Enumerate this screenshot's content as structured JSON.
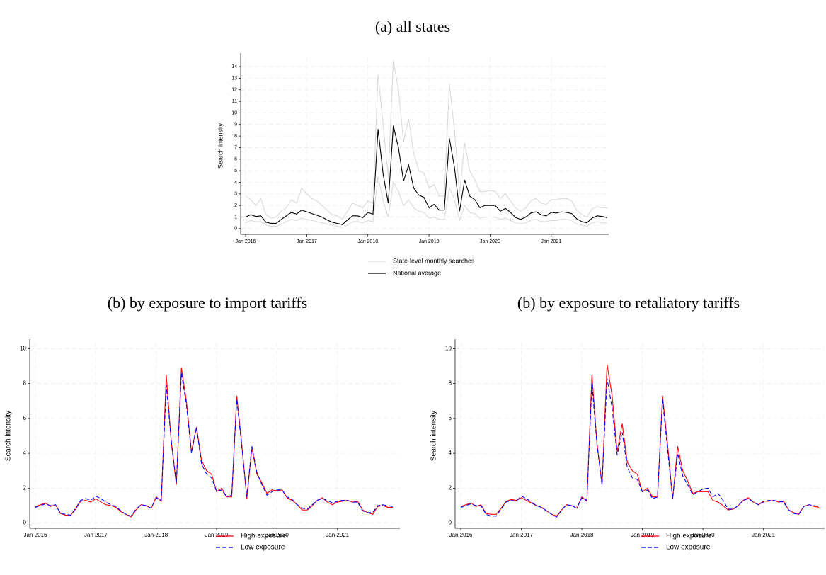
{
  "chart_data": [
    {
      "type": "line",
      "title": "(a) all states",
      "y_label": "Search intensity",
      "grid": true,
      "x": [
        "2016-01",
        "2016-02",
        "2016-03",
        "2016-04",
        "2016-05",
        "2016-06",
        "2016-07",
        "2016-08",
        "2016-09",
        "2016-10",
        "2016-11",
        "2016-12",
        "2017-01",
        "2017-02",
        "2017-03",
        "2017-04",
        "2017-05",
        "2017-06",
        "2017-07",
        "2017-08",
        "2017-09",
        "2017-10",
        "2017-11",
        "2017-12",
        "2018-01",
        "2018-02",
        "2018-03",
        "2018-04",
        "2018-05",
        "2018-06",
        "2018-07",
        "2018-08",
        "2018-09",
        "2018-10",
        "2018-11",
        "2018-12",
        "2019-01",
        "2019-02",
        "2019-03",
        "2019-04",
        "2019-05",
        "2019-06",
        "2019-07",
        "2019-08",
        "2019-09",
        "2019-10",
        "2019-11",
        "2019-12",
        "2020-01",
        "2020-02",
        "2020-03",
        "2020-04",
        "2020-05",
        "2020-06",
        "2020-07",
        "2020-08",
        "2020-09",
        "2020-10",
        "2020-11",
        "2020-12",
        "2021-01",
        "2021-02",
        "2021-03",
        "2021-04",
        "2021-05",
        "2021-06",
        "2021-07",
        "2021-08",
        "2021-09",
        "2021-10",
        "2021-11",
        "2021-12"
      ],
      "xticks": [
        {
          "value": "2016-01",
          "label": "Jan 2016"
        },
        {
          "value": "2017-01",
          "label": "Jan 2017"
        },
        {
          "value": "2018-01",
          "label": "Jan 2018"
        },
        {
          "value": "2019-01",
          "label": "Jan 2019"
        },
        {
          "value": "2020-01",
          "label": "Jan 2020"
        },
        {
          "value": "2021-01",
          "label": "Jan 2021"
        }
      ],
      "ylim": [
        -0.5,
        14.8
      ],
      "yticks": [
        0,
        1,
        2,
        3,
        4,
        5,
        6,
        7,
        8,
        9,
        10,
        11,
        12,
        13,
        14
      ],
      "series": [
        {
          "name": "State-level monthly searches",
          "color": "#d9d9d9",
          "values": [
            2.8,
            2.5,
            2.0,
            2.6,
            1.2,
            0.9,
            1.0,
            1.5,
            1.8,
            2.5,
            2.2,
            3.5,
            3.0,
            2.6,
            2.4,
            2.0,
            1.6,
            1.2,
            1.1,
            0.8,
            1.5,
            2.2,
            2.0,
            1.8,
            2.4,
            2.2,
            13.3,
            9.0,
            4.5,
            14.5,
            12.0,
            7.5,
            9.5,
            6.5,
            5.0,
            4.8,
            3.5,
            3.8,
            2.8,
            2.8,
            12.5,
            8.5,
            3.0,
            7.4,
            5.0,
            4.2,
            3.2,
            3.2,
            3.3,
            3.2,
            2.6,
            3.0,
            2.4,
            1.8,
            1.5,
            1.8,
            2.4,
            2.6,
            2.2,
            2.1,
            2.5,
            2.5,
            2.6,
            2.6,
            2.4,
            1.6,
            1.2,
            1.0,
            1.7,
            1.9,
            1.8,
            1.8
          ]
        },
        {
          "color": "#d9d9d9",
          "values": [
            0.5,
            0.7,
            0.6,
            0.6,
            0.3,
            0.2,
            0.2,
            0.4,
            0.6,
            0.8,
            0.7,
            0.9,
            0.8,
            0.7,
            0.6,
            0.5,
            0.4,
            0.3,
            0.2,
            0.1,
            0.3,
            0.6,
            0.6,
            0.5,
            0.7,
            0.6,
            4.5,
            2.4,
            1.0,
            4.0,
            3.2,
            2.0,
            2.5,
            1.8,
            1.5,
            1.4,
            0.9,
            1.0,
            0.8,
            0.8,
            3.5,
            2.5,
            0.7,
            2.0,
            1.4,
            1.3,
            0.9,
            1.0,
            1.0,
            1.0,
            0.8,
            0.9,
            0.7,
            0.5,
            0.4,
            0.5,
            0.7,
            0.8,
            0.6,
            0.6,
            0.7,
            0.7,
            0.8,
            0.8,
            0.7,
            0.4,
            0.3,
            0.2,
            0.5,
            0.6,
            0.5,
            0.5
          ]
        },
        {
          "name": "National average",
          "color": "#000000",
          "values": [
            1.0,
            1.2,
            1.05,
            1.1,
            0.55,
            0.45,
            0.45,
            0.8,
            1.1,
            1.4,
            1.25,
            1.6,
            1.45,
            1.3,
            1.15,
            1.0,
            0.75,
            0.55,
            0.45,
            0.35,
            0.75,
            1.1,
            1.1,
            0.95,
            1.4,
            1.25,
            8.6,
            4.7,
            2.2,
            8.9,
            7.0,
            4.1,
            5.5,
            3.5,
            2.9,
            2.7,
            1.8,
            2.1,
            1.6,
            1.6,
            7.8,
            5.3,
            1.5,
            4.2,
            2.8,
            2.5,
            1.8,
            2.0,
            2.0,
            2.0,
            1.5,
            1.75,
            1.4,
            0.95,
            0.8,
            1.0,
            1.35,
            1.45,
            1.2,
            1.1,
            1.4,
            1.35,
            1.45,
            1.4,
            1.3,
            0.85,
            0.6,
            0.5,
            0.9,
            1.1,
            1.05,
            0.95
          ]
        }
      ]
    },
    {
      "type": "line",
      "title": "(b) by exposure to import tariffs",
      "y_label": "Search intensity",
      "grid": true,
      "x": [
        "2016-01",
        "2016-02",
        "2016-03",
        "2016-04",
        "2016-05",
        "2016-06",
        "2016-07",
        "2016-08",
        "2016-09",
        "2016-10",
        "2016-11",
        "2016-12",
        "2017-01",
        "2017-02",
        "2017-03",
        "2017-04",
        "2017-05",
        "2017-06",
        "2017-07",
        "2017-08",
        "2017-09",
        "2017-10",
        "2017-11",
        "2017-12",
        "2018-01",
        "2018-02",
        "2018-03",
        "2018-04",
        "2018-05",
        "2018-06",
        "2018-07",
        "2018-08",
        "2018-09",
        "2018-10",
        "2018-11",
        "2018-12",
        "2019-01",
        "2019-02",
        "2019-03",
        "2019-04",
        "2019-05",
        "2019-06",
        "2019-07",
        "2019-08",
        "2019-09",
        "2019-10",
        "2019-11",
        "2019-12",
        "2020-01",
        "2020-02",
        "2020-03",
        "2020-04",
        "2020-05",
        "2020-06",
        "2020-07",
        "2020-08",
        "2020-09",
        "2020-10",
        "2020-11",
        "2020-12",
        "2021-01",
        "2021-02",
        "2021-03",
        "2021-04",
        "2021-05",
        "2021-06",
        "2021-07",
        "2021-08",
        "2021-09",
        "2021-10",
        "2021-11",
        "2021-12"
      ],
      "xticks": [
        {
          "value": "2016-01",
          "label": "Jan 2016"
        },
        {
          "value": "2017-01",
          "label": "Jan 2017"
        },
        {
          "value": "2018-01",
          "label": "Jan 2018"
        },
        {
          "value": "2019-01",
          "label": "Jan 2019"
        },
        {
          "value": "2020-01",
          "label": "Jan 2020"
        },
        {
          "value": "2021-01",
          "label": "Jan 2021"
        }
      ],
      "ylim": [
        -0.3,
        10.3
      ],
      "yticks": [
        0,
        2,
        4,
        6,
        8,
        10
      ],
      "series": [
        {
          "name": "High exposure",
          "color": "#ff0000",
          "line_style": "solid",
          "values": [
            0.95,
            1.05,
            1.15,
            0.95,
            1.05,
            0.55,
            0.45,
            0.45,
            0.8,
            1.25,
            1.3,
            1.2,
            1.4,
            1.2,
            1.05,
            1.0,
            0.9,
            0.65,
            0.5,
            0.35,
            0.75,
            1.05,
            1.0,
            0.85,
            1.5,
            1.25,
            8.5,
            4.6,
            2.2,
            8.9,
            7.0,
            4.1,
            5.5,
            3.6,
            3.0,
            2.8,
            1.8,
            2.0,
            1.5,
            1.5,
            7.3,
            4.5,
            1.4,
            4.3,
            2.8,
            2.3,
            1.7,
            1.9,
            1.85,
            1.9,
            1.45,
            1.3,
            1.05,
            0.75,
            0.75,
            1.0,
            1.3,
            1.45,
            1.2,
            1.05,
            1.2,
            1.25,
            1.3,
            1.2,
            1.25,
            0.75,
            0.6,
            0.5,
            0.95,
            1.0,
            0.9,
            0.9
          ]
        },
        {
          "name": "Low exposure",
          "color": "#0000ff",
          "line_style": "dashed",
          "values": [
            0.9,
            1.0,
            1.1,
            1.0,
            1.05,
            0.55,
            0.5,
            0.45,
            0.85,
            1.3,
            1.4,
            1.3,
            1.55,
            1.4,
            1.2,
            1.05,
            0.95,
            0.7,
            0.5,
            0.4,
            0.8,
            1.05,
            1.0,
            0.85,
            1.45,
            1.3,
            7.9,
            4.7,
            2.3,
            8.6,
            6.8,
            4.0,
            5.5,
            3.4,
            2.8,
            2.6,
            1.8,
            1.9,
            1.5,
            1.6,
            7.1,
            4.4,
            1.5,
            4.4,
            2.9,
            2.2,
            1.6,
            1.8,
            1.9,
            1.9,
            1.5,
            1.35,
            1.05,
            0.85,
            0.8,
            1.05,
            1.3,
            1.4,
            1.3,
            1.15,
            1.25,
            1.3,
            1.3,
            1.2,
            1.2,
            0.7,
            0.6,
            0.6,
            1.0,
            1.05,
            1.0,
            0.95
          ]
        }
      ]
    },
    {
      "type": "line",
      "title": "(b) by exposure to retaliatory tariffs",
      "y_label": "Search intensity",
      "grid": true,
      "x": [
        "2016-01",
        "2016-02",
        "2016-03",
        "2016-04",
        "2016-05",
        "2016-06",
        "2016-07",
        "2016-08",
        "2016-09",
        "2016-10",
        "2016-11",
        "2016-12",
        "2017-01",
        "2017-02",
        "2017-03",
        "2017-04",
        "2017-05",
        "2017-06",
        "2017-07",
        "2017-08",
        "2017-09",
        "2017-10",
        "2017-11",
        "2017-12",
        "2018-01",
        "2018-02",
        "2018-03",
        "2018-04",
        "2018-05",
        "2018-06",
        "2018-07",
        "2018-08",
        "2018-09",
        "2018-10",
        "2018-11",
        "2018-12",
        "2019-01",
        "2019-02",
        "2019-03",
        "2019-04",
        "2019-05",
        "2019-06",
        "2019-07",
        "2019-08",
        "2019-09",
        "2019-10",
        "2019-11",
        "2019-12",
        "2020-01",
        "2020-02",
        "2020-03",
        "2020-04",
        "2020-05",
        "2020-06",
        "2020-07",
        "2020-08",
        "2020-09",
        "2020-10",
        "2020-11",
        "2020-12",
        "2021-01",
        "2021-02",
        "2021-03",
        "2021-04",
        "2021-05",
        "2021-06",
        "2021-07",
        "2021-08",
        "2021-09",
        "2021-10",
        "2021-11",
        "2021-12"
      ],
      "xticks": [
        {
          "value": "2016-01",
          "label": "Jan 2016"
        },
        {
          "value": "2017-01",
          "label": "Jan 2017"
        },
        {
          "value": "2018-01",
          "label": "Jan 2018"
        },
        {
          "value": "2019-01",
          "label": "Jan 2019"
        },
        {
          "value": "2020-01",
          "label": "Jan 2020"
        },
        {
          "value": "2021-01",
          "label": "Jan 2021"
        }
      ],
      "ylim": [
        -0.3,
        10.3
      ],
      "yticks": [
        0,
        2,
        4,
        6,
        8,
        10
      ],
      "series": [
        {
          "name": "High exposure",
          "color": "#ff0000",
          "line_style": "solid",
          "values": [
            0.95,
            1.05,
            1.15,
            0.95,
            1.05,
            0.55,
            0.5,
            0.5,
            0.85,
            1.25,
            1.35,
            1.3,
            1.45,
            1.3,
            1.15,
            1.0,
            0.9,
            0.7,
            0.5,
            0.4,
            0.75,
            1.05,
            1.0,
            0.85,
            1.5,
            1.25,
            8.5,
            4.6,
            2.2,
            9.1,
            7.3,
            4.1,
            5.7,
            3.5,
            3.0,
            2.8,
            1.8,
            2.0,
            1.5,
            1.5,
            7.3,
            4.5,
            1.4,
            4.4,
            3.0,
            2.4,
            1.7,
            1.8,
            1.8,
            1.8,
            1.3,
            1.2,
            1.0,
            0.75,
            0.8,
            1.0,
            1.3,
            1.45,
            1.2,
            1.05,
            1.25,
            1.25,
            1.3,
            1.2,
            1.25,
            0.75,
            0.6,
            0.5,
            0.95,
            1.05,
            0.95,
            0.9
          ]
        },
        {
          "name": "Low exposure",
          "color": "#0000ff",
          "line_style": "dashed",
          "values": [
            0.9,
            1.0,
            1.1,
            1.0,
            1.0,
            0.5,
            0.4,
            0.4,
            0.8,
            1.2,
            1.3,
            1.25,
            1.55,
            1.4,
            1.2,
            1.0,
            0.9,
            0.7,
            0.5,
            0.35,
            0.75,
            1.05,
            1.0,
            0.85,
            1.45,
            1.3,
            8.0,
            4.5,
            2.2,
            8.3,
            6.6,
            3.9,
            5.2,
            3.2,
            2.6,
            2.5,
            1.8,
            1.9,
            1.4,
            1.5,
            7.1,
            4.2,
            1.4,
            4.0,
            2.7,
            2.2,
            1.6,
            1.8,
            1.95,
            2.0,
            1.5,
            1.7,
            1.3,
            0.8,
            0.8,
            1.0,
            1.3,
            1.4,
            1.2,
            1.05,
            1.2,
            1.3,
            1.3,
            1.25,
            1.2,
            0.75,
            0.55,
            0.5,
            0.95,
            1.05,
            1.0,
            0.95
          ]
        }
      ]
    }
  ]
}
